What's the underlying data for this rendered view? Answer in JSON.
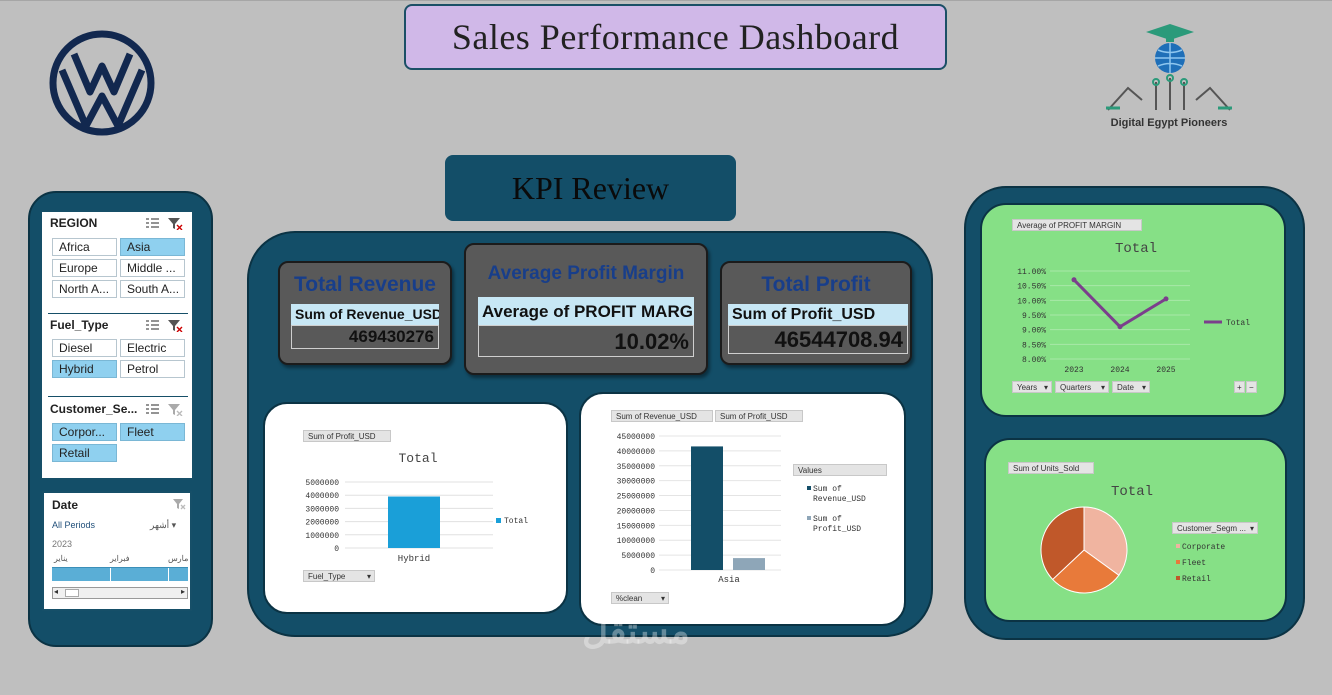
{
  "header": {
    "title": "Sales Performance Dashboard",
    "kpi_review": "KPI Review"
  },
  "logos": {
    "left": "volkswagen-logo",
    "right_text": "Digital Egypt Pioneers"
  },
  "slicers": {
    "region": {
      "label": "REGION",
      "items": [
        {
          "label": "Africa",
          "selected": false
        },
        {
          "label": "Asia",
          "selected": true
        },
        {
          "label": "Europe",
          "selected": false
        },
        {
          "label": "Middle ...",
          "selected": false
        },
        {
          "label": "North A...",
          "selected": false
        },
        {
          "label": "South A...",
          "selected": false
        }
      ]
    },
    "fuel_type": {
      "label": "Fuel_Type",
      "items": [
        {
          "label": "Diesel",
          "selected": false
        },
        {
          "label": "Electric",
          "selected": false
        },
        {
          "label": "Hybrid",
          "selected": true
        },
        {
          "label": "Petrol",
          "selected": false
        }
      ]
    },
    "customer_segment": {
      "label": "Customer_Se...",
      "items": [
        {
          "label": "Corpor...",
          "selected": true
        },
        {
          "label": "Fleet",
          "selected": true
        },
        {
          "label": "Retail",
          "selected": true
        }
      ]
    }
  },
  "timeline": {
    "label": "Date",
    "all_periods": "All Periods",
    "level": "أشهر",
    "year": "2023",
    "months": [
      "يناير",
      "فبراير",
      "مارس"
    ]
  },
  "kpis": {
    "revenue": {
      "title": "Total Revenue",
      "label": "Sum of Revenue_USD",
      "value": "469430276"
    },
    "margin": {
      "title": "Average Profit Margin",
      "label": "Average of PROFIT MARGIN",
      "value": "10.02%"
    },
    "profit": {
      "title": "Total Profit",
      "label": "Sum of Profit_USD",
      "value": "46544708.94"
    }
  },
  "colors": {
    "panel": "#134e68",
    "green": "#86e086",
    "kpi_card": "#595959",
    "bar_blue": "#1a9fd8",
    "bar_navy": "#134e68",
    "bar_grey": "#8ea6b8",
    "line_purple": "#7b3f8c"
  },
  "chart_data": [
    {
      "type": "bar",
      "field": "Sum of Profit_USD",
      "title": "Total",
      "categories": [
        "Hybrid"
      ],
      "series": [
        {
          "name": "Total",
          "values": [
            3900000
          ]
        }
      ],
      "ylim": [
        0,
        5000000
      ],
      "yticks": [
        "5000000",
        "4000000",
        "3000000",
        "2000000",
        "1000000",
        "0"
      ],
      "legend": "right",
      "filter_button": "Fuel_Type"
    },
    {
      "type": "bar",
      "fields": [
        "Sum of Revenue_USD",
        "Sum of Profit_USD"
      ],
      "categories": [
        "Asia"
      ],
      "series": [
        {
          "name": "Sum of Revenue_USD",
          "values": [
            41500000
          ]
        },
        {
          "name": "Sum of Profit_USD",
          "values": [
            4000000
          ]
        }
      ],
      "ylim": [
        0,
        45000000
      ],
      "yticks": [
        "45000000",
        "40000000",
        "35000000",
        "30000000",
        "25000000",
        "20000000",
        "15000000",
        "10000000",
        "5000000",
        "0"
      ],
      "legend_title": "Values",
      "legend": "right",
      "filter_button": "%clean"
    },
    {
      "type": "line",
      "field": "Average of PROFIT MARGIN",
      "title": "Total",
      "x": [
        "2023",
        "2024",
        "2025"
      ],
      "series": [
        {
          "name": "Total",
          "values": [
            10.7,
            9.1,
            10.05
          ]
        }
      ],
      "ylim": [
        8.0,
        11.0
      ],
      "yticks": [
        "11.00%",
        "10.50%",
        "10.00%",
        "9.50%",
        "9.00%",
        "8.50%",
        "8.00%"
      ],
      "legend": "right",
      "filter_buttons": [
        "Years",
        "Quarters",
        "Date"
      ]
    },
    {
      "type": "pie",
      "field": "Sum of Units_Sold",
      "title": "Total",
      "categories": [
        "Corporate",
        "Fleet",
        "Retail"
      ],
      "values": [
        35,
        28,
        37
      ],
      "colors": [
        "#f0b4a0",
        "#e87a3a",
        "#c0582a"
      ],
      "legend_title": "Customer_Segm ...",
      "legend": "right"
    }
  ]
}
